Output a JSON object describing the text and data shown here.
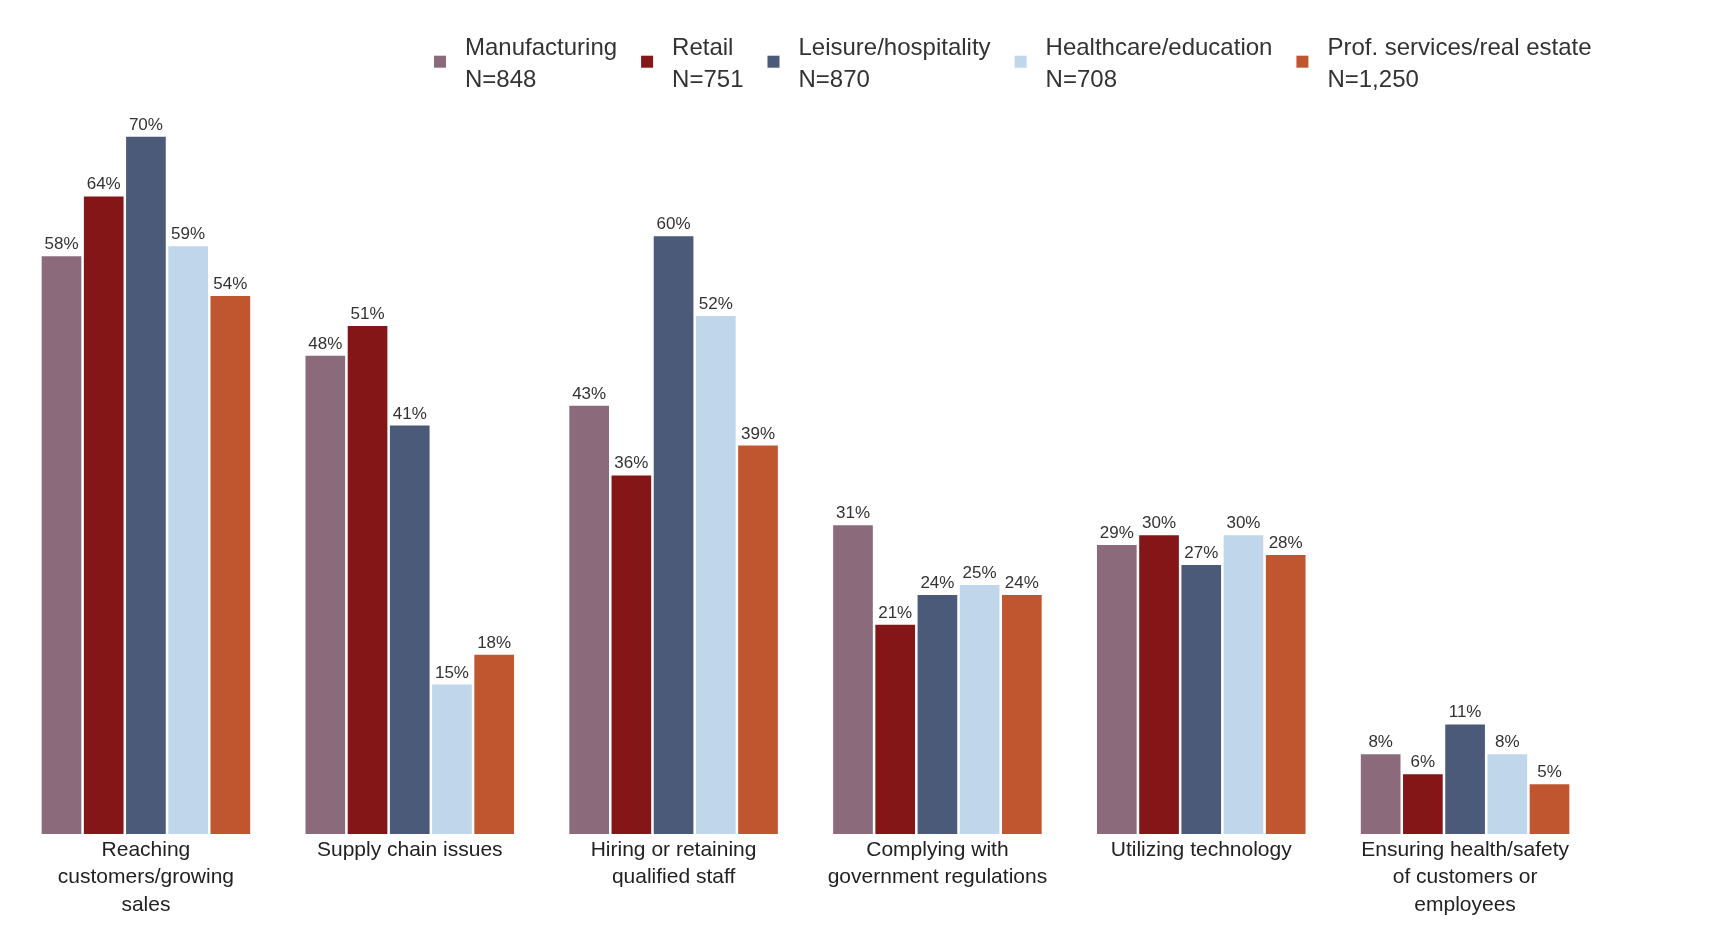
{
  "chart_data": {
    "type": "bar",
    "categories": [
      "Reaching customers/growing sales",
      "Supply chain issues",
      "Hiring or retaining qualified staff",
      "Complying with government regulations",
      "Utilizing technology",
      "Ensuring health/safety of customers or employees"
    ],
    "series": [
      {
        "name": "Manufacturing\nN=848",
        "color": "#8b6b7b",
        "values": [
          58,
          48,
          43,
          31,
          29,
          8
        ],
        "value_labels": [
          "58%",
          "48%",
          "43%",
          "31%",
          "29%",
          "8%"
        ]
      },
      {
        "name": "Retail\nN=751",
        "color": "#841617",
        "values": [
          64,
          51,
          36,
          21,
          30,
          6
        ],
        "value_labels": [
          "64%",
          "51%",
          "36%",
          "21%",
          "30%",
          "6%"
        ]
      },
      {
        "name": "Leisure/hospitality\nN=870",
        "color": "#4b5a78",
        "values": [
          70,
          41,
          60,
          24,
          27,
          11
        ],
        "value_labels": [
          "70%",
          "41%",
          "60%",
          "24%",
          "27%",
          "11%"
        ]
      },
      {
        "name": "Healthcare/education\nN=708",
        "color": "#c0d6eb",
        "values": [
          59,
          15,
          52,
          25,
          30,
          8
        ],
        "value_labels": [
          "59%",
          "15%",
          "52%",
          "25%",
          "30%",
          "8%"
        ]
      },
      {
        "name": "Prof. services/real estate\nN=1,250",
        "color": "#c0562f",
        "values": [
          54,
          18,
          39,
          24,
          28,
          5
        ],
        "value_labels": [
          "54%",
          "18%",
          "39%",
          "24%",
          "28%",
          "5%"
        ]
      }
    ],
    "grid": false,
    "legend": "top"
  }
}
